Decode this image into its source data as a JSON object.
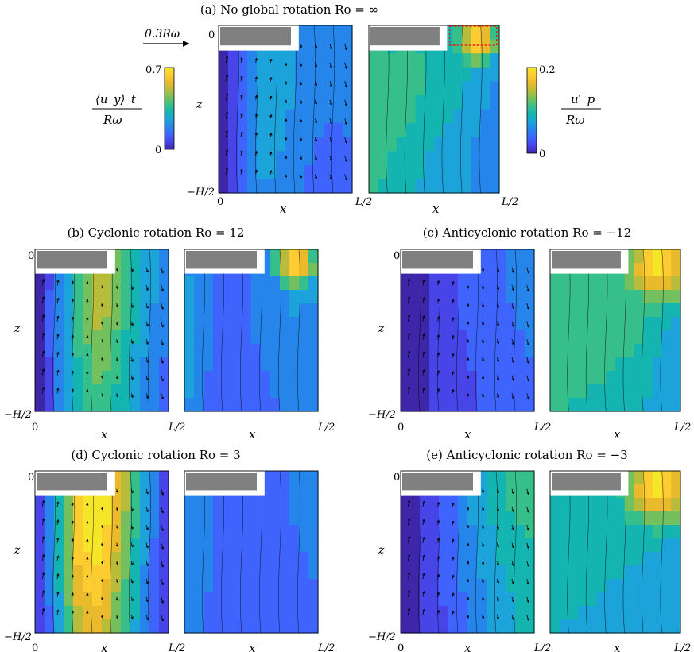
{
  "colors": {
    "colormap": [
      "#3e26a8",
      "#4744e8",
      "#3f64fe",
      "#2685ea",
      "#1ba3da",
      "#14b5b0",
      "#37bf8b",
      "#75c05e",
      "#b7bc3b",
      "#e9ba2c",
      "#fccc30",
      "#f5e628"
    ],
    "blank_box": "#808080",
    "highlight_box": "#e02020"
  },
  "chart_data": {
    "type": "heatmap",
    "top_annotations": {
      "scale_vector_label": "0.3Rω",
      "mean_colorbar": {
        "label_top": "⟨u_y⟩_t",
        "label_bottom": "Rω",
        "max": "0.7",
        "min": "0",
        "range": [
          0,
          0.7
        ]
      },
      "fluct_colorbar": {
        "label_top": "u′_p",
        "label_bottom": "Rω",
        "max": "0.2",
        "min": "0",
        "range": [
          0,
          0.2
        ]
      }
    },
    "panels": [
      {
        "id": "a",
        "title": "(a) No global rotation Ro = ∞",
        "Ro": "∞",
        "xlabel": "x",
        "ylabel": "z",
        "x_ticks": [
          "0",
          "L/2"
        ],
        "y_ticks": [
          "0",
          "−H/2"
        ],
        "mean_field_rel": [
          0.05,
          0.25,
          0.4,
          0.35,
          0.3,
          0.28,
          0.3
        ],
        "fluct_field_rel": [
          0.55,
          0.5,
          0.5,
          0.45,
          0.45,
          0.4,
          0.35
        ],
        "fluct_hotspot": "top-right"
      },
      {
        "id": "b",
        "title": "(b) Cyclonic rotation Ro = 12",
        "Ro": "12",
        "xlabel": "x",
        "ylabel": "z",
        "x_ticks": [
          "0",
          "L/2"
        ],
        "y_ticks": [
          "0",
          "−H/2"
        ],
        "mean_field_rel": [
          0.05,
          0.3,
          0.55,
          0.7,
          0.55,
          0.4,
          0.3
        ],
        "fluct_field_rel": [
          0.35,
          0.25,
          0.2,
          0.25,
          0.3,
          0.35,
          0.35
        ],
        "fluct_hotspot": "top-right"
      },
      {
        "id": "c",
        "title": "(c) Anticyclonic rotation Ro = −12",
        "Ro": "−12",
        "xlabel": "x",
        "ylabel": "z",
        "x_ticks": [
          "0",
          "L/2"
        ],
        "y_ticks": [
          "0",
          "−H/2"
        ],
        "mean_field_rel": [
          0.05,
          0.08,
          0.12,
          0.18,
          0.22,
          0.25,
          0.3
        ],
        "fluct_field_rel": [
          0.55,
          0.55,
          0.55,
          0.55,
          0.55,
          0.5,
          0.45
        ],
        "fluct_hotspot": "top-right-large"
      },
      {
        "id": "d",
        "title": "(d) Cyclonic rotation Ro = 3",
        "Ro": "3",
        "xlabel": "x",
        "ylabel": "z",
        "x_ticks": [
          "0",
          "L/2"
        ],
        "y_ticks": [
          "0",
          "−H/2"
        ],
        "mean_field_rel": [
          0.1,
          0.45,
          0.9,
          0.95,
          0.7,
          0.4,
          0.15
        ],
        "fluct_field_rel": [
          0.3,
          0.25,
          0.22,
          0.2,
          0.22,
          0.25,
          0.3
        ],
        "fluct_hotspot": "none"
      },
      {
        "id": "e",
        "title": "(e) Anticyclonic rotation Ro = −3",
        "Ro": "−3",
        "xlabel": "x",
        "ylabel": "z",
        "x_ticks": [
          "0",
          "L/2"
        ],
        "y_ticks": [
          "0",
          "−H/2"
        ],
        "mean_field_rel": [
          0.05,
          0.1,
          0.2,
          0.3,
          0.4,
          0.5,
          0.55
        ],
        "fluct_field_rel": [
          0.45,
          0.45,
          0.45,
          0.45,
          0.45,
          0.45,
          0.45
        ],
        "fluct_hotspot": "top-right-large"
      }
    ]
  }
}
